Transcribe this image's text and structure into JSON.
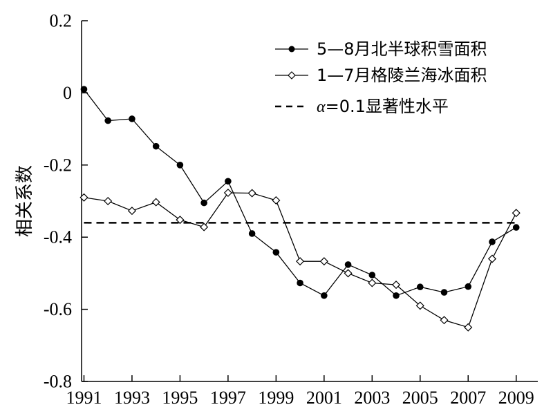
{
  "chart_data": {
    "type": "line",
    "title": "",
    "xlabel": "",
    "ylabel": "相关系数",
    "xlim": [
      1990.9,
      2009.9
    ],
    "ylim": [
      -0.8,
      0.2
    ],
    "x_ticks": [
      1991,
      1993,
      1995,
      1997,
      1999,
      2001,
      2003,
      2005,
      2007,
      2009
    ],
    "x_tick_labels": [
      "1991",
      "1993",
      "1995",
      "1997",
      "1999",
      "2001",
      "2003",
      "2005",
      "2007",
      "2009"
    ],
    "y_ticks": [
      0.2,
      0,
      -0.2,
      -0.4,
      -0.6,
      -0.8
    ],
    "y_tick_labels": [
      "0.2",
      "0",
      "-0.2",
      "-0.4",
      "-0.6",
      "-0.8"
    ],
    "grid": false,
    "legend_position": "top-right",
    "x": [
      1991,
      1992,
      1993,
      1994,
      1995,
      1996,
      1997,
      1998,
      1999,
      2000,
      2001,
      2002,
      2003,
      2004,
      2005,
      2006,
      2007,
      2008,
      2009
    ],
    "series": [
      {
        "name": "5—8月北半球积雪面积",
        "marker": "filled-circle",
        "color": "#000000",
        "values": [
          0.01,
          -0.077,
          -0.072,
          -0.148,
          -0.2,
          -0.305,
          -0.245,
          -0.39,
          -0.442,
          -0.527,
          -0.562,
          -0.476,
          -0.505,
          -0.562,
          -0.538,
          -0.553,
          -0.537,
          -0.413,
          -0.373
        ]
      },
      {
        "name": "1—7月格陵兰海冰面积",
        "marker": "open-diamond",
        "color": "#000000",
        "values": [
          -0.29,
          -0.3,
          -0.327,
          -0.303,
          -0.352,
          -0.372,
          -0.277,
          -0.278,
          -0.298,
          -0.467,
          -0.467,
          -0.5,
          -0.527,
          -0.532,
          -0.59,
          -0.63,
          -0.65,
          -0.46,
          -0.333
        ]
      }
    ],
    "reference_line": {
      "name_prefix": "α",
      "name": "=0.1显著性水平",
      "style": "dashed",
      "y": -0.36,
      "x_range": [
        1991,
        2009
      ]
    }
  }
}
